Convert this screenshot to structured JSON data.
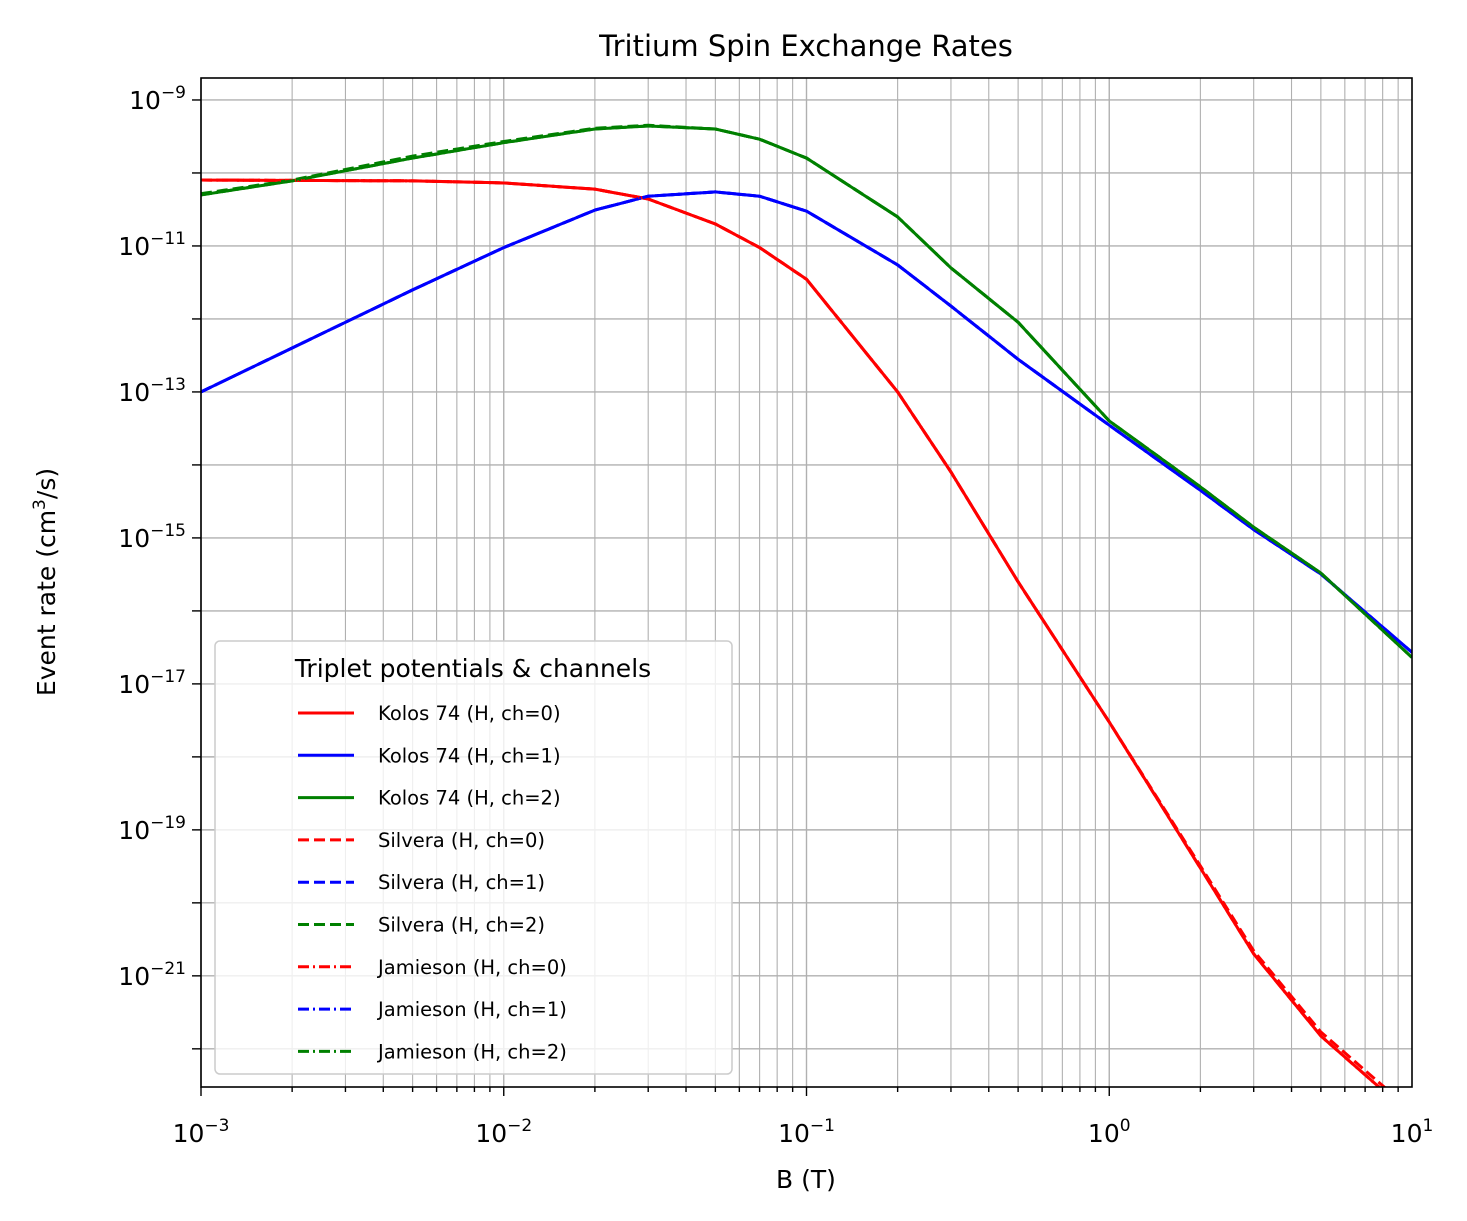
{
  "chart_data": {
    "type": "line",
    "title": "Tritium Spin Exchange Rates",
    "xlabel": "B (T)",
    "ylabel": {
      "pre": "Event rate (cm",
      "sup": "3",
      "post": "/s)"
    },
    "x_scale": "log",
    "y_scale": "log",
    "xlim": [
      0.001,
      10
    ],
    "ylim": [
      3e-23,
      2e-09
    ],
    "grid": "major and minor",
    "x_ticks": [
      {
        "value": 0.001,
        "base": "10",
        "exp": "−3"
      },
      {
        "value": 0.01,
        "base": "10",
        "exp": "−2"
      },
      {
        "value": 0.1,
        "base": "10",
        "exp": "−1"
      },
      {
        "value": 1,
        "base": "10",
        "exp": "0"
      },
      {
        "value": 10,
        "base": "10",
        "exp": "1"
      }
    ],
    "y_ticks": [
      {
        "value": 1e-21,
        "base": "10",
        "exp": "−21"
      },
      {
        "value": 1e-19,
        "base": "10",
        "exp": "−19"
      },
      {
        "value": 1e-17,
        "base": "10",
        "exp": "−17"
      },
      {
        "value": 1e-15,
        "base": "10",
        "exp": "−15"
      },
      {
        "value": 1e-13,
        "base": "10",
        "exp": "−13"
      },
      {
        "value": 1e-11,
        "base": "10",
        "exp": "−11"
      },
      {
        "value": 1e-09,
        "base": "10",
        "exp": "−9"
      }
    ],
    "legend": {
      "title": "Triplet potentials & channels",
      "placement": "lower left"
    },
    "x": [
      0.001,
      0.002,
      0.005,
      0.01,
      0.02,
      0.03,
      0.05,
      0.07,
      0.1,
      0.2,
      0.3,
      0.5,
      1,
      2,
      3,
      5,
      10
    ],
    "series": [
      {
        "name": "Kolos 74 (H, ch=0)",
        "color": "#ff0000",
        "dash": "solid",
        "values": [
          8e-11,
          7.9e-11,
          7.8e-11,
          7.3e-11,
          6e-11,
          4.4e-11,
          2e-11,
          9.5e-12,
          3.5e-12,
          1e-13,
          8e-15,
          2.5e-16,
          3e-18,
          3e-20,
          2e-21,
          1.5e-22,
          1.2e-23
        ]
      },
      {
        "name": "Kolos 74 (H, ch=1)",
        "color": "#0000ff",
        "dash": "solid",
        "values": [
          1e-13,
          4e-13,
          2.5e-12,
          9.5e-12,
          3.1e-11,
          4.8e-11,
          5.5e-11,
          4.8e-11,
          3e-11,
          5.5e-12,
          1.5e-12,
          2.8e-13,
          3.5e-14,
          4.5e-15,
          1.3e-15,
          3.2e-16,
          2.7e-17
        ]
      },
      {
        "name": "Kolos 74 (H, ch=2)",
        "color": "#008000",
        "dash": "solid",
        "values": [
          5e-11,
          7.8e-11,
          1.6e-10,
          2.6e-10,
          4e-10,
          4.4e-10,
          4e-10,
          2.9e-10,
          1.6e-10,
          2.5e-11,
          5e-12,
          9e-13,
          4e-14,
          5e-15,
          1.4e-15,
          3.3e-16,
          2.3e-17
        ]
      },
      {
        "name": "Silvera (H, ch=0)",
        "color": "#ff0000",
        "dash": "dashed",
        "values": [
          8e-11,
          7.9e-11,
          7.8e-11,
          7.3e-11,
          6e-11,
          4.4e-11,
          2e-11,
          9.5e-12,
          3.5e-12,
          1e-13,
          8e-15,
          2.5e-16,
          3e-18,
          3.2e-20,
          2.2e-21,
          1.7e-22,
          1.4e-23
        ]
      },
      {
        "name": "Silvera (H, ch=1)",
        "color": "#0000ff",
        "dash": "dashed",
        "values": [
          1e-13,
          4e-13,
          2.5e-12,
          9.5e-12,
          3.1e-11,
          4.8e-11,
          5.5e-11,
          4.8e-11,
          3e-11,
          5.5e-12,
          1.5e-12,
          2.8e-13,
          3.5e-14,
          4.5e-15,
          1.3e-15,
          3.2e-16,
          2.7e-17
        ]
      },
      {
        "name": "Silvera (H, ch=2)",
        "color": "#008000",
        "dash": "dashed",
        "values": [
          5.2e-11,
          8e-11,
          1.7e-10,
          2.7e-10,
          4.1e-10,
          4.5e-10,
          4e-10,
          2.9e-10,
          1.6e-10,
          2.5e-11,
          5e-12,
          9e-13,
          4e-14,
          5e-15,
          1.4e-15,
          3.3e-16,
          2.3e-17
        ]
      },
      {
        "name": "Jamieson (H, ch=0)",
        "color": "#ff0000",
        "dash": "dashdot",
        "values": [
          8e-11,
          7.9e-11,
          7.8e-11,
          7.3e-11,
          6e-11,
          4.4e-11,
          2e-11,
          9.5e-12,
          3.5e-12,
          1e-13,
          8e-15,
          2.5e-16,
          3e-18,
          3e-20,
          2e-21,
          1.5e-22,
          1.2e-23
        ]
      },
      {
        "name": "Jamieson (H, ch=1)",
        "color": "#0000ff",
        "dash": "dashdot",
        "values": [
          1e-13,
          4e-13,
          2.5e-12,
          9.5e-12,
          3.1e-11,
          4.8e-11,
          5.5e-11,
          4.8e-11,
          3e-11,
          5.5e-12,
          1.5e-12,
          2.8e-13,
          3.5e-14,
          4.5e-15,
          1.3e-15,
          3.2e-16,
          2.7e-17
        ]
      },
      {
        "name": "Jamieson (H, ch=2)",
        "color": "#008000",
        "dash": "dashdot",
        "values": [
          5e-11,
          7.8e-11,
          1.6e-10,
          2.6e-10,
          4e-10,
          4.4e-10,
          4e-10,
          2.9e-10,
          1.6e-10,
          2.5e-11,
          5e-12,
          9e-13,
          4e-14,
          5e-15,
          1.4e-15,
          3.3e-16,
          2.3e-17
        ]
      }
    ]
  }
}
